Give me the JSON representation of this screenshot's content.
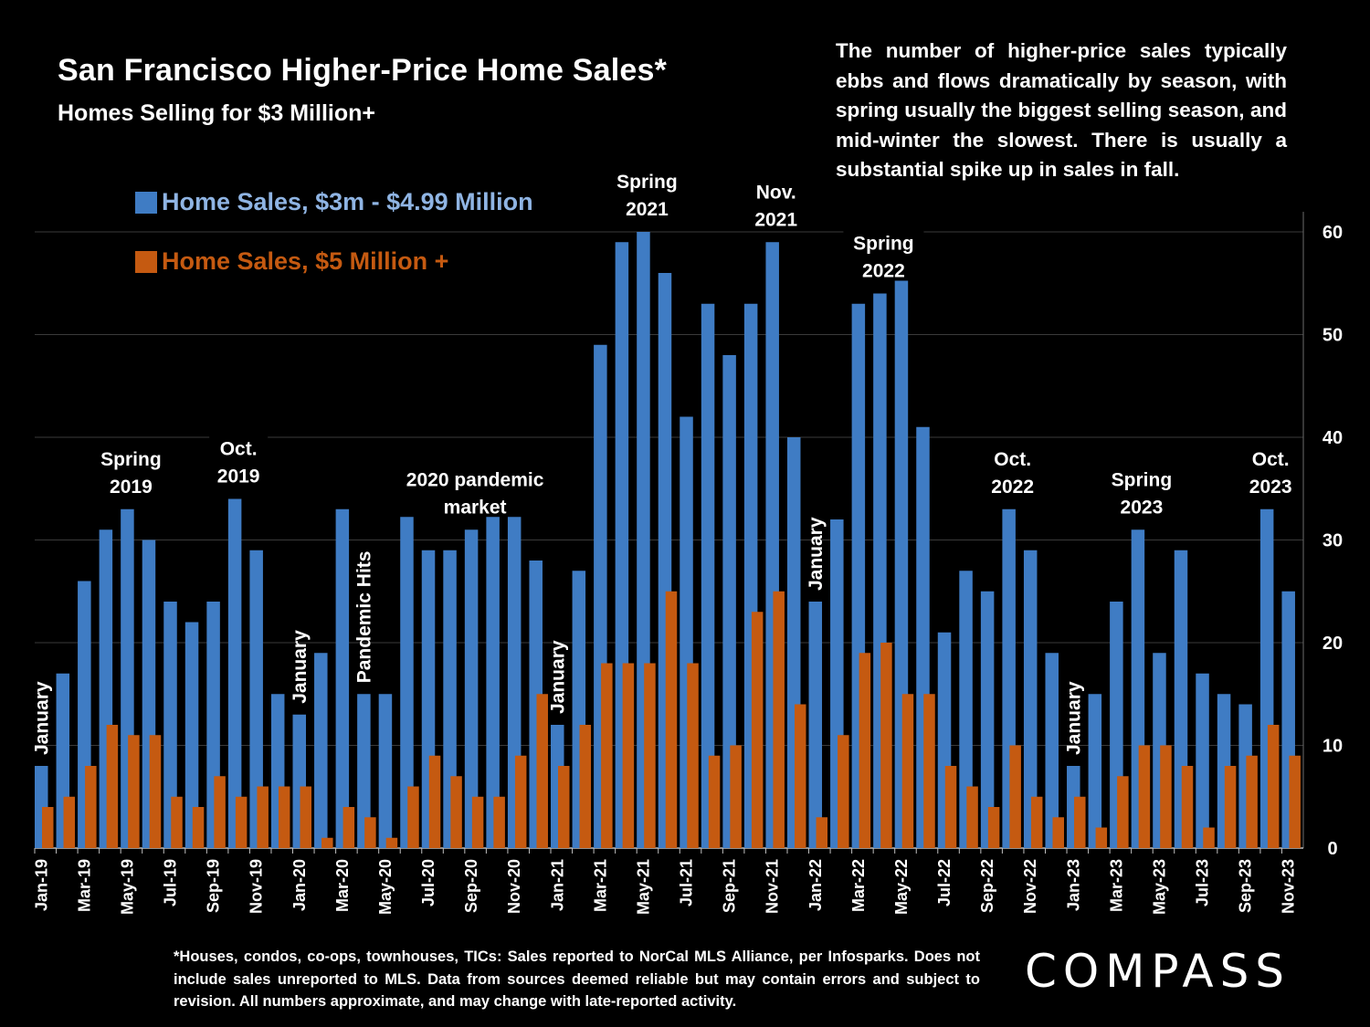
{
  "title": "San Francisco Higher-Price Home Sales*",
  "subtitle": "Homes Selling for $3 Million+",
  "note": "The number of higher-price sales typically ebbs and flows dramatically by season, with spring usually the biggest selling season, and mid-winter the slowest. There is usually a substantial spike up in sales in fall.",
  "footnote": "*Houses, condos, co-ops, townhouses, TICs:  Sales reported to NorCal MLS Alliance, per Infosparks. Does not include sales unreported to MLS. Data from sources deemed reliable but may contain errors and subject to revision.  All numbers approximate, and may change with late-reported activity.",
  "logo": "COMPASS",
  "colors": {
    "series1": "#3f7cc4",
    "series2": "#c55a11",
    "background": "#000000",
    "text": "#ffffff",
    "grid": "#3a3a3a"
  },
  "chart_data": {
    "type": "bar",
    "title": "San Francisco Higher-Price Home Sales*",
    "subtitle": "Homes Selling for $3 Million+",
    "ylim": [
      0,
      60
    ],
    "yticks": [
      0,
      10,
      20,
      30,
      40,
      50,
      60
    ],
    "y_axis_side": "right",
    "grid": true,
    "legend_position": "top-left",
    "categories": [
      "Jan-19",
      "Feb-19",
      "Mar-19",
      "Apr-19",
      "May-19",
      "Jun-19",
      "Jul-19",
      "Aug-19",
      "Sep-19",
      "Oct-19",
      "Nov-19",
      "Dec-19",
      "Jan-20",
      "Feb-20",
      "Mar-20",
      "Apr-20",
      "May-20",
      "Jun-20",
      "Jul-20",
      "Aug-20",
      "Sep-20",
      "Oct-20",
      "Nov-20",
      "Dec-20",
      "Jan-21",
      "Feb-21",
      "Mar-21",
      "Apr-21",
      "May-21",
      "Jun-21",
      "Jul-21",
      "Aug-21",
      "Sep-21",
      "Oct-21",
      "Nov-21",
      "Dec-21",
      "Jan-22",
      "Feb-22",
      "Mar-22",
      "Apr-22",
      "May-22",
      "Jun-22",
      "Jul-22",
      "Aug-22",
      "Sep-22",
      "Oct-22",
      "Nov-22",
      "Dec-22",
      "Jan-23",
      "Feb-23",
      "Mar-23",
      "Apr-23",
      "May-23",
      "Jun-23",
      "Jul-23",
      "Aug-23",
      "Sep-23",
      "Oct-23",
      "Nov-23"
    ],
    "shown_tick_labels": [
      "Jan-19",
      "Mar-19",
      "May-19",
      "Jul-19",
      "Sep-19",
      "Nov-19",
      "Jan-20",
      "Mar-20",
      "May-20",
      "Jul-20",
      "Sep-20",
      "Nov-20",
      "Jan-21",
      "Mar-21",
      "May-21",
      "Jul-21",
      "Sep-21",
      "Nov-21",
      "Jan-22",
      "Mar-22",
      "May-22",
      "Jul-22",
      "Sep-22",
      "Nov-22",
      "Jan-23",
      "Mar-23",
      "May-23",
      "Jul-23",
      "Sep-23",
      "Nov-23"
    ],
    "series": [
      {
        "name": "Home Sales, $3m - $4.99 Million",
        "values": [
          8,
          17,
          26,
          31,
          33,
          30,
          24,
          22,
          24,
          34,
          29,
          15,
          13,
          19,
          33,
          15,
          15,
          35,
          29,
          29,
          31,
          37,
          35,
          28,
          12,
          27,
          49,
          59,
          60,
          56,
          42,
          53,
          48,
          53,
          59,
          40,
          24,
          32,
          53,
          54,
          57,
          41,
          21,
          27,
          25,
          33,
          29,
          19,
          8,
          15,
          24,
          31,
          19,
          29,
          17,
          15,
          14,
          33,
          25
        ]
      },
      {
        "name": "Home Sales, $5 Million +",
        "values": [
          4,
          5,
          8,
          12,
          11,
          11,
          5,
          4,
          7,
          5,
          6,
          6,
          6,
          1,
          4,
          3,
          1,
          6,
          9,
          7,
          5,
          5,
          9,
          15,
          8,
          12,
          18,
          18,
          18,
          25,
          18,
          9,
          10,
          23,
          25,
          14,
          3,
          11,
          19,
          20,
          15,
          15,
          8,
          6,
          4,
          10,
          5,
          3,
          5,
          2,
          7,
          10,
          10,
          8,
          2,
          8,
          9,
          12,
          9
        ]
      }
    ],
    "annotations": [
      {
        "text": "January",
        "index": 0,
        "rotated": true
      },
      {
        "text": "Spring 2019",
        "index": 4
      },
      {
        "text": "Oct. 2019",
        "index": 9
      },
      {
        "text": "January",
        "index": 12,
        "rotated": true
      },
      {
        "text": "Pandemic Hits",
        "index": 15,
        "rotated": true
      },
      {
        "text": "2020 pandemic market",
        "index": 20
      },
      {
        "text": "January",
        "index": 24,
        "rotated": true
      },
      {
        "text": "Spring 2021",
        "index": 28
      },
      {
        "text": "Nov. 2021",
        "index": 34
      },
      {
        "text": "January",
        "index": 36,
        "rotated": true
      },
      {
        "text": "Spring 2022",
        "index": 39
      },
      {
        "text": "Oct. 2022",
        "index": 45
      },
      {
        "text": "January",
        "index": 48,
        "rotated": true
      },
      {
        "text": "Spring 2023",
        "index": 51
      },
      {
        "text": "Oct. 2023",
        "index": 57
      }
    ]
  }
}
